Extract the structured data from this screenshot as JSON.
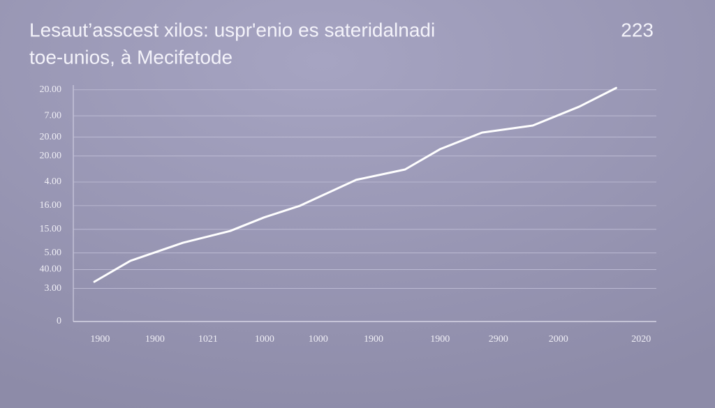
{
  "chart_data": {
    "type": "line",
    "title": "Lesaut’asscest xilos: uspr'enio es sateridalnadi",
    "subtitle": "toe-unios, à Mecifetode",
    "annotation": "223",
    "xlim": [
      0,
      100
    ],
    "ylim": [
      0,
      100
    ],
    "xticks": [
      {
        "value": 4.6,
        "label": "1900"
      },
      {
        "value": 14.0,
        "label": "1900"
      },
      {
        "value": 23.1,
        "label": "1021"
      },
      {
        "value": 32.8,
        "label": "1000"
      },
      {
        "value": 42.0,
        "label": "1000"
      },
      {
        "value": 51.5,
        "label": "1900"
      },
      {
        "value": 62.9,
        "label": "1900"
      },
      {
        "value": 72.9,
        "label": "2900"
      },
      {
        "value": 83.2,
        "label": "2000"
      },
      {
        "value": 97.4,
        "label": "2020"
      }
    ],
    "yticks": [
      {
        "value": 98,
        "label": "20.00"
      },
      {
        "value": 87,
        "label": "7.00"
      },
      {
        "value": 78,
        "label": "20.00"
      },
      {
        "value": 70,
        "label": "20.00"
      },
      {
        "value": 59,
        "label": "4.00"
      },
      {
        "value": 49,
        "label": "16.00"
      },
      {
        "value": 39,
        "label": "15.00"
      },
      {
        "value": 29,
        "label": "5.00"
      },
      {
        "value": 22,
        "label": "40.00"
      },
      {
        "value": 14,
        "label": "3.00"
      },
      0
    ],
    "grid": true,
    "color": "#ffffff",
    "x": [
      3.6,
      9.8,
      18.8,
      26.9,
      32.7,
      38.9,
      48.5,
      56.9,
      62.9,
      70.1,
      78.8,
      86.8,
      93.1
    ],
    "values": [
      16.8,
      25.7,
      33.3,
      38.3,
      44.0,
      49.0,
      59.9,
      64.3,
      72.9,
      79.9,
      82.9,
      90.9,
      98.8
    ]
  }
}
